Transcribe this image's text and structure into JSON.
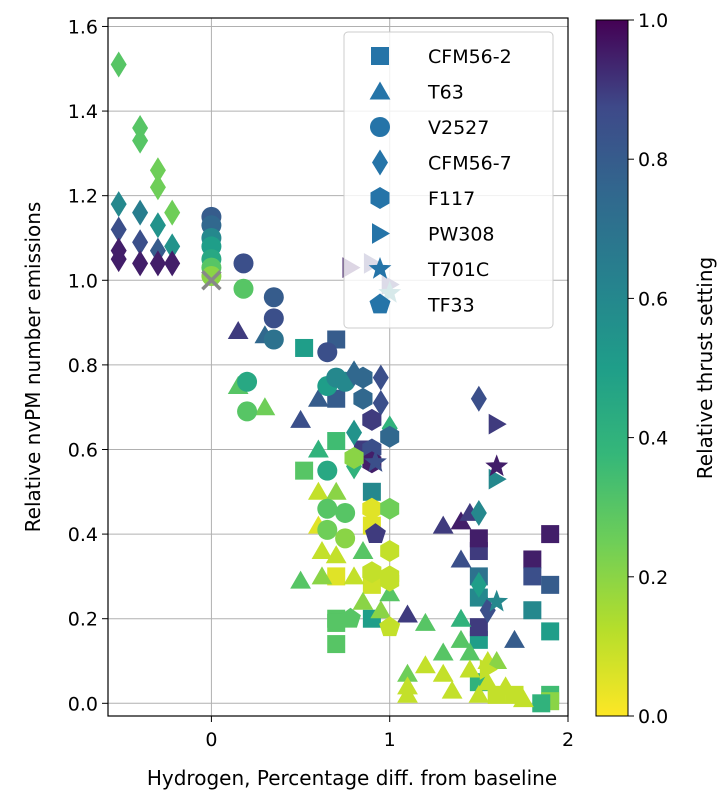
{
  "chart_data": {
    "type": "scatter",
    "xlabel": "Hydrogen, Percentage diff. from baseline",
    "ylabel": "Relative nvPM number emissions",
    "xlim": [
      -0.58,
      2.0
    ],
    "ylim": [
      -0.03,
      1.62
    ],
    "xticks": [
      0,
      1,
      2
    ],
    "yticks": [
      0.0,
      0.2,
      0.4,
      0.6,
      0.8,
      1.0,
      1.2,
      1.4,
      1.6
    ],
    "grid": true,
    "legend_position": "top-right",
    "colorbar": {
      "label": "Relative thrust setting",
      "range": [
        0.0,
        1.0
      ],
      "ticks": [
        0.0,
        0.2,
        0.4,
        0.6,
        0.8,
        1.0
      ],
      "colormap": "viridis"
    },
    "baseline_marker": {
      "x": 0.0,
      "y": 1.0,
      "symbol": "x",
      "color": "#888888"
    },
    "series": [
      {
        "name": "CFM56-2",
        "marker": "square",
        "points": [
          [
            0.52,
            0.84,
            0.5
          ],
          [
            0.7,
            0.86,
            0.8
          ],
          [
            0.85,
            0.6,
            0.9
          ],
          [
            0.9,
            0.5,
            0.6
          ],
          [
            0.9,
            0.42,
            0.05
          ],
          [
            0.9,
            0.2,
            0.5
          ],
          [
            0.9,
            0.28,
            0.08
          ],
          [
            0.7,
            0.62,
            0.35
          ],
          [
            0.7,
            0.72,
            0.8
          ],
          [
            0.7,
            0.3,
            0.05
          ],
          [
            0.7,
            0.2,
            0.3
          ],
          [
            0.7,
            0.14,
            0.3
          ],
          [
            0.7,
            0.19,
            0.3
          ],
          [
            0.52,
            0.55,
            0.3
          ],
          [
            1.5,
            0.36,
            0.9
          ],
          [
            1.5,
            0.39,
            0.95
          ],
          [
            1.5,
            0.25,
            0.6
          ],
          [
            1.5,
            0.3,
            0.7
          ],
          [
            1.5,
            0.15,
            0.5
          ],
          [
            1.5,
            0.18,
            0.9
          ],
          [
            1.5,
            0.05,
            0.4
          ],
          [
            1.8,
            0.34,
            0.95
          ],
          [
            1.8,
            0.3,
            0.85
          ],
          [
            1.8,
            0.22,
            0.6
          ],
          [
            1.9,
            0.4,
            0.95
          ],
          [
            1.9,
            0.28,
            0.8
          ],
          [
            1.9,
            0.17,
            0.5
          ],
          [
            1.9,
            0.02,
            0.35
          ],
          [
            1.9,
            0.005,
            0.2
          ],
          [
            1.85,
            0.0,
            0.4
          ],
          [
            1.6,
            0.02,
            0.1
          ],
          [
            1.7,
            0.02,
            0.1
          ]
        ]
      },
      {
        "name": "T63",
        "marker": "triangle",
        "points": [
          [
            0.15,
            0.88,
            0.9
          ],
          [
            0.15,
            0.75,
            0.3
          ],
          [
            0.3,
            0.87,
            0.75
          ],
          [
            0.3,
            0.7,
            0.25
          ],
          [
            0.5,
            0.67,
            0.85
          ],
          [
            0.5,
            0.29,
            0.3
          ],
          [
            0.6,
            0.72,
            0.8
          ],
          [
            0.6,
            0.6,
            0.4
          ],
          [
            0.6,
            0.5,
            0.1
          ],
          [
            0.6,
            0.42,
            0.05
          ],
          [
            0.62,
            0.36,
            0.1
          ],
          [
            0.62,
            0.3,
            0.2
          ],
          [
            0.7,
            0.5,
            0.2
          ],
          [
            0.7,
            0.35,
            0.1
          ],
          [
            0.8,
            0.3,
            0.1
          ],
          [
            0.85,
            0.36,
            0.3
          ],
          [
            0.85,
            0.24,
            0.2
          ],
          [
            0.95,
            0.22,
            0.2
          ],
          [
            1.0,
            0.26,
            0.3
          ],
          [
            1.1,
            0.21,
            0.9
          ],
          [
            1.1,
            0.07,
            0.25
          ],
          [
            1.1,
            0.04,
            0.1
          ],
          [
            1.1,
            0.02,
            0.1
          ],
          [
            1.2,
            0.09,
            0.1
          ],
          [
            1.2,
            0.19,
            0.3
          ],
          [
            1.3,
            0.12,
            0.3
          ],
          [
            1.3,
            0.07,
            0.1
          ],
          [
            1.35,
            0.03,
            0.1
          ],
          [
            1.4,
            0.43,
            0.95
          ],
          [
            1.4,
            0.34,
            0.85
          ],
          [
            1.4,
            0.2,
            0.4
          ],
          [
            1.4,
            0.15,
            0.3
          ],
          [
            1.45,
            0.12,
            0.3
          ],
          [
            1.45,
            0.08,
            0.1
          ],
          [
            1.5,
            0.02,
            0.1
          ],
          [
            1.55,
            0.1,
            0.1
          ],
          [
            1.55,
            0.05,
            0.1
          ],
          [
            1.6,
            0.1,
            0.2
          ],
          [
            1.65,
            0.04,
            0.1
          ],
          [
            1.7,
            0.15,
            0.8
          ],
          [
            1.75,
            0.01,
            0.1
          ],
          [
            1.3,
            0.42,
            0.9
          ],
          [
            1.45,
            0.45,
            0.9
          ]
        ]
      },
      {
        "name": "V2527",
        "marker": "circle",
        "points": [
          [
            0.0,
            1.15,
            0.8
          ],
          [
            0.0,
            1.13,
            0.75
          ],
          [
            0.0,
            1.1,
            0.6
          ],
          [
            0.0,
            1.08,
            0.5
          ],
          [
            0.0,
            1.05,
            0.45
          ],
          [
            0.0,
            1.03,
            0.3
          ],
          [
            0.0,
            1.01,
            0.2
          ],
          [
            0.18,
            1.04,
            0.85
          ],
          [
            0.18,
            0.98,
            0.3
          ],
          [
            0.35,
            0.96,
            0.8
          ],
          [
            0.35,
            0.91,
            0.85
          ],
          [
            0.35,
            0.86,
            0.7
          ],
          [
            0.2,
            0.76,
            0.45
          ],
          [
            0.2,
            0.69,
            0.3
          ],
          [
            0.65,
            0.83,
            0.85
          ],
          [
            0.65,
            0.75,
            0.5
          ],
          [
            0.7,
            0.77,
            0.6
          ],
          [
            0.75,
            0.76,
            0.6
          ],
          [
            0.65,
            0.55,
            0.45
          ],
          [
            0.65,
            0.46,
            0.3
          ],
          [
            0.65,
            0.41,
            0.25
          ],
          [
            0.75,
            0.45,
            0.3
          ],
          [
            0.75,
            0.39,
            0.2
          ]
        ]
      },
      {
        "name": "CFM56-7",
        "marker": "diamond",
        "points": [
          [
            -0.52,
            1.51,
            0.3
          ],
          [
            -0.4,
            1.36,
            0.3
          ],
          [
            -0.4,
            1.33,
            0.3
          ],
          [
            -0.3,
            1.26,
            0.25
          ],
          [
            -0.3,
            1.22,
            0.25
          ],
          [
            -0.22,
            1.16,
            0.25
          ],
          [
            -0.52,
            1.18,
            0.6
          ],
          [
            -0.52,
            1.12,
            0.85
          ],
          [
            -0.52,
            1.07,
            0.95
          ],
          [
            -0.52,
            1.05,
            0.95
          ],
          [
            -0.4,
            1.16,
            0.65
          ],
          [
            -0.4,
            1.09,
            0.85
          ],
          [
            -0.4,
            1.04,
            0.95
          ],
          [
            -0.3,
            1.13,
            0.55
          ],
          [
            -0.3,
            1.07,
            0.8
          ],
          [
            -0.3,
            1.04,
            0.95
          ],
          [
            -0.22,
            1.08,
            0.55
          ],
          [
            -0.22,
            1.04,
            0.95
          ],
          [
            0.8,
            0.78,
            0.75
          ],
          [
            0.8,
            0.64,
            0.55
          ],
          [
            0.8,
            0.56,
            0.4
          ],
          [
            0.95,
            0.77,
            0.85
          ],
          [
            0.95,
            0.71,
            0.85
          ],
          [
            1.0,
            0.65,
            0.4
          ],
          [
            1.5,
            0.72,
            0.85
          ],
          [
            1.5,
            0.45,
            0.6
          ],
          [
            1.5,
            0.28,
            0.5
          ],
          [
            1.55,
            0.22,
            0.85
          ]
        ]
      },
      {
        "name": "F117",
        "marker": "hexagon",
        "points": [
          [
            0.85,
            0.77,
            0.75
          ],
          [
            0.85,
            0.72,
            0.75
          ],
          [
            0.9,
            0.67,
            0.9
          ],
          [
            0.9,
            0.6,
            0.85
          ],
          [
            1.0,
            0.63,
            0.75
          ],
          [
            0.9,
            0.57,
            0.95
          ],
          [
            0.9,
            0.46,
            0.05
          ],
          [
            1.0,
            0.46,
            0.25
          ],
          [
            1.0,
            0.36,
            0.1
          ],
          [
            1.0,
            0.3,
            0.1
          ],
          [
            1.0,
            0.29,
            0.1
          ],
          [
            0.9,
            0.31,
            0.1
          ],
          [
            0.8,
            0.58,
            0.2
          ]
        ]
      },
      {
        "name": "PW308",
        "marker": "triangle-right",
        "points": [
          [
            0.78,
            1.03,
            0.95
          ],
          [
            0.9,
            1.04,
            0.9
          ],
          [
            1.0,
            0.99,
            0.9
          ],
          [
            1.6,
            0.66,
            0.9
          ],
          [
            1.6,
            0.53,
            0.6
          ],
          [
            1.55,
            0.08,
            0.1
          ]
        ]
      },
      {
        "name": "T701C",
        "marker": "star",
        "points": [
          [
            1.6,
            0.56,
            0.95
          ],
          [
            1.6,
            0.24,
            0.6
          ],
          [
            0.92,
            0.57,
            0.85
          ],
          [
            1.0,
            0.97,
            0.6
          ]
        ]
      },
      {
        "name": "TF33",
        "marker": "pentagon",
        "points": [
          [
            0.92,
            0.4,
            0.9
          ],
          [
            1.0,
            0.18,
            0.1
          ],
          [
            0.78,
            0.2,
            0.3
          ]
        ]
      }
    ]
  }
}
